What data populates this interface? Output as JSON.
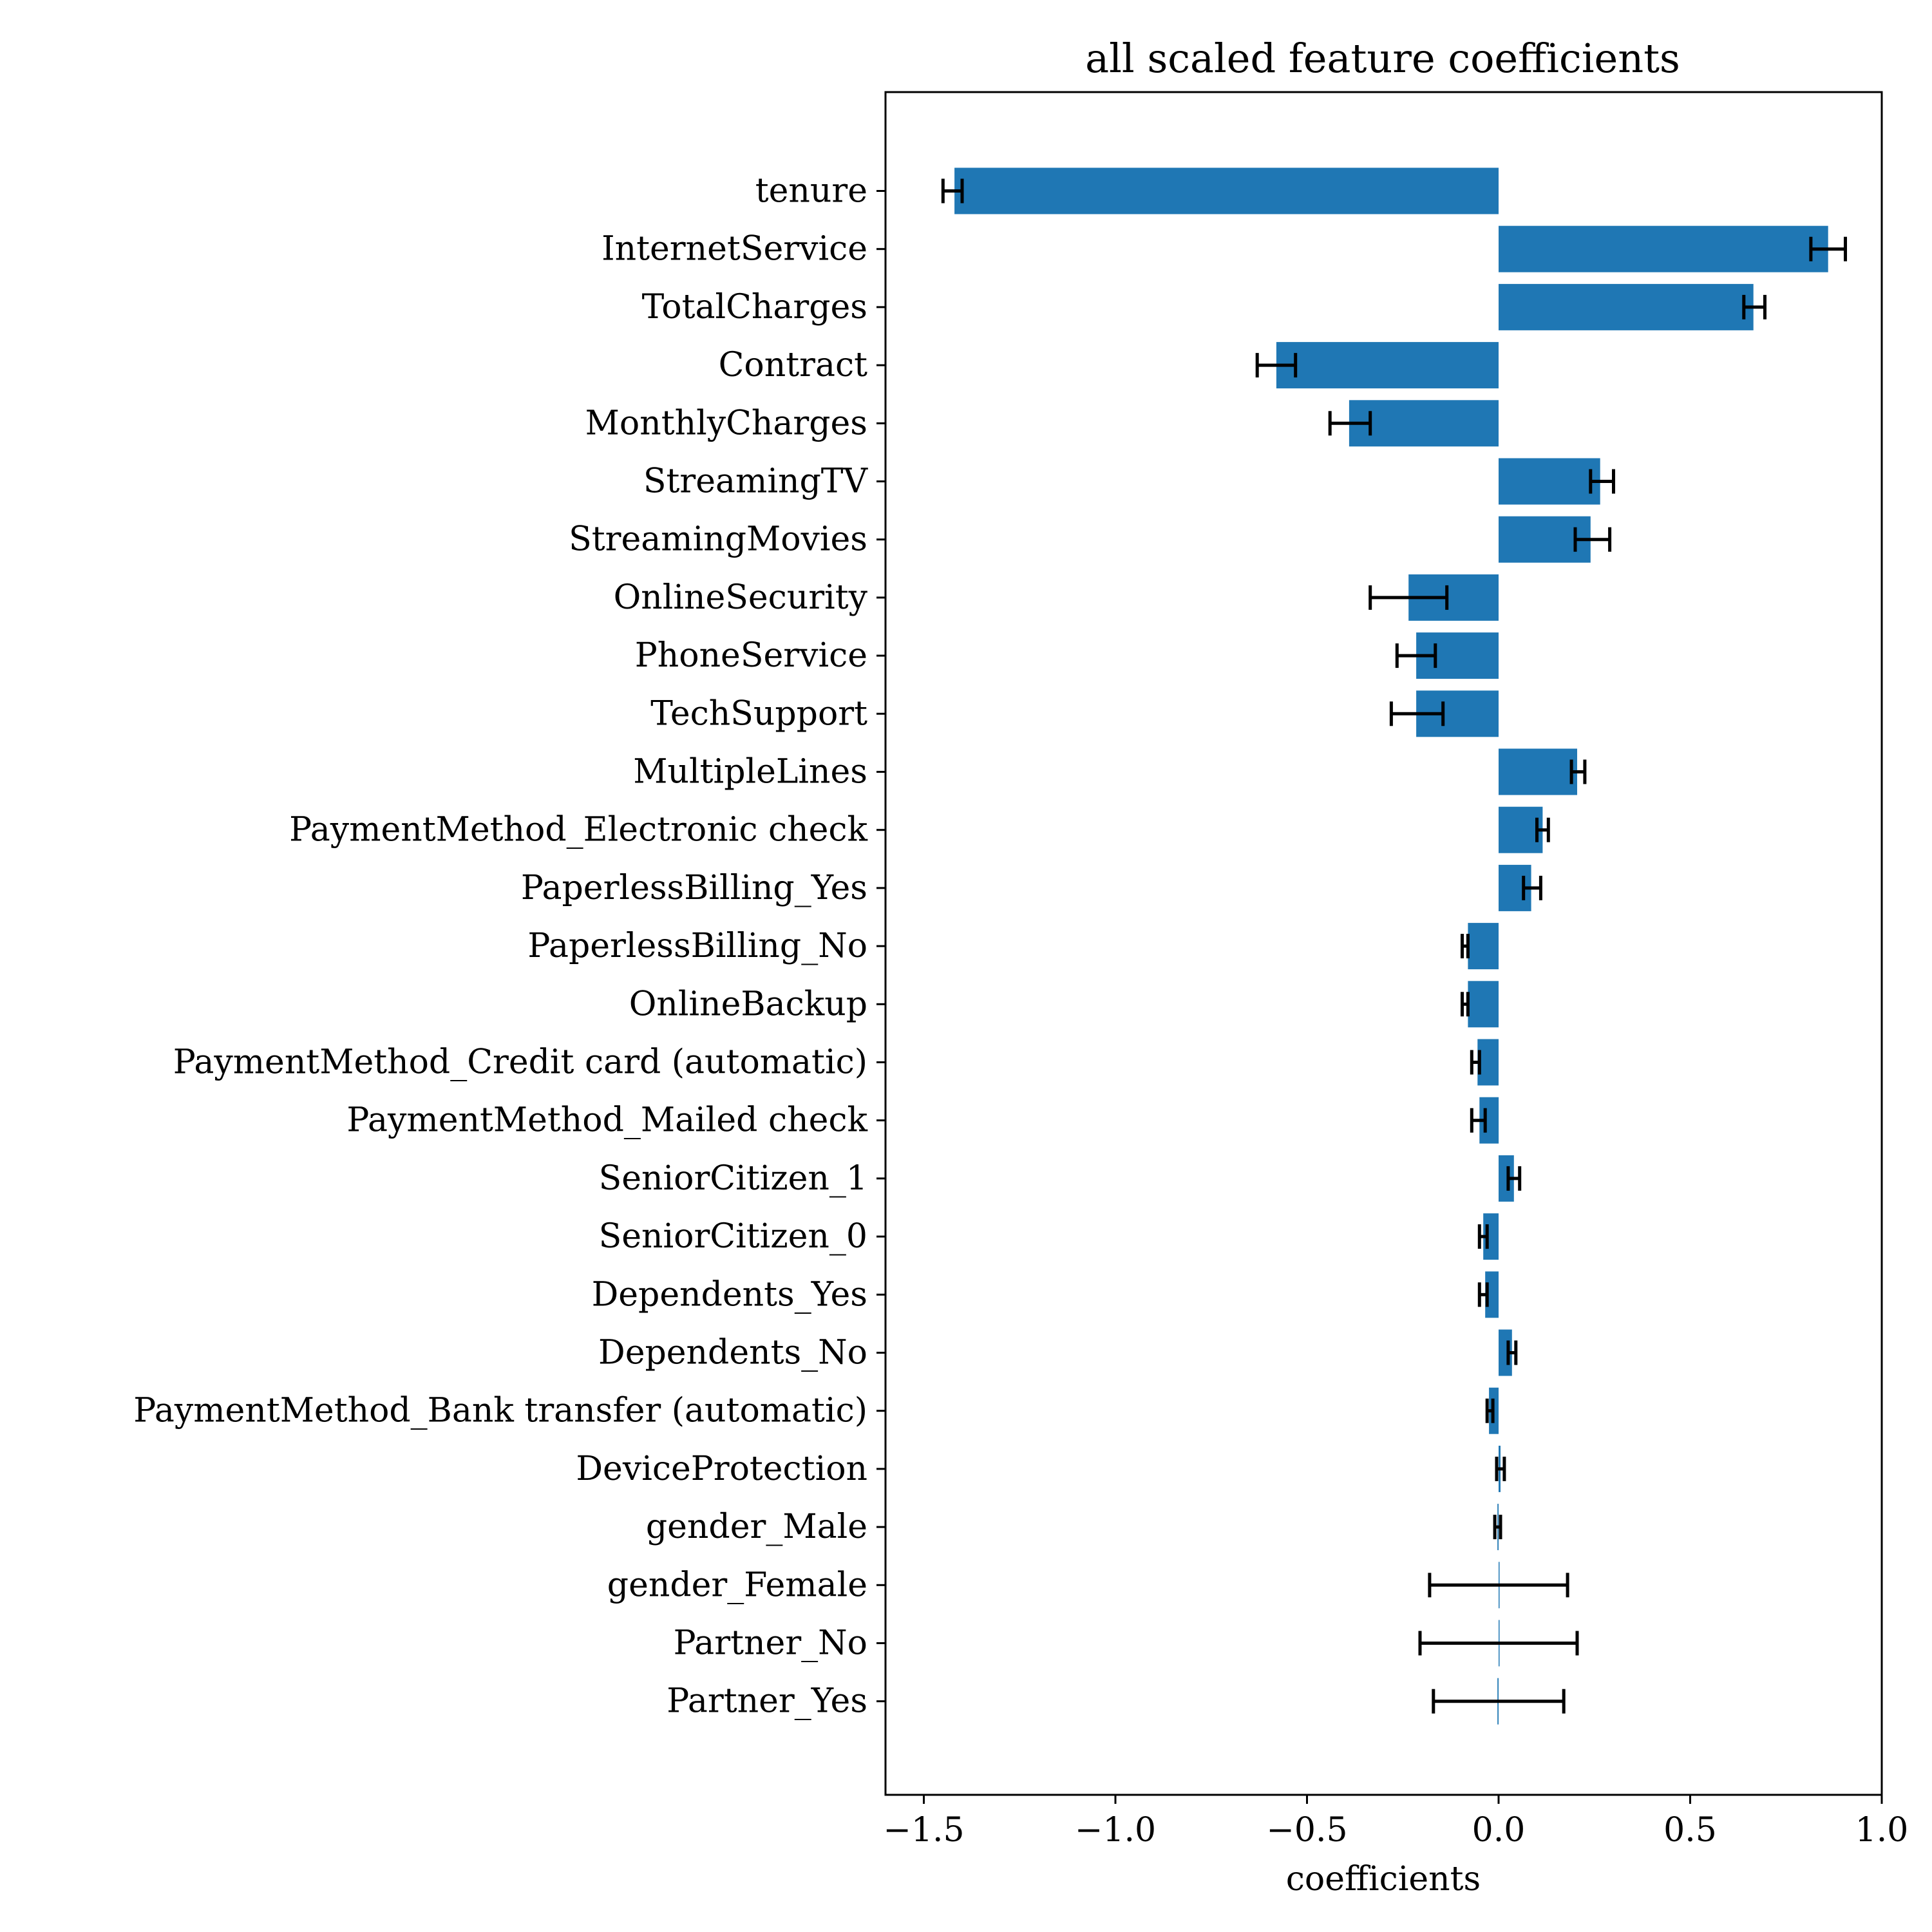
{
  "chart_data": {
    "type": "bar",
    "orientation": "horizontal",
    "title": "all scaled feature coefficients",
    "xlabel": "coefficients",
    "ylabel": "",
    "xlim": [
      -1.6,
      1.0
    ],
    "xticks": [
      -1.5,
      -1.0,
      -0.5,
      0.0,
      0.5,
      1.0
    ],
    "xtick_labels": [
      "−1.5",
      "−1.0",
      "−0.5",
      "0.0",
      "0.5",
      "1.0"
    ],
    "grid": false,
    "legend": "none",
    "bar_color": "#1f77b4",
    "errorbar_color": "#000000",
    "categories": [
      "tenure",
      "InternetService",
      "TotalCharges",
      "Contract",
      "MonthlyCharges",
      "StreamingTV",
      "StreamingMovies",
      "OnlineSecurity",
      "PhoneService",
      "TechSupport",
      "MultipleLines",
      "PaymentMethod_Electronic check",
      "PaperlessBilling_Yes",
      "PaperlessBilling_No",
      "OnlineBackup",
      "PaymentMethod_Credit card (automatic)",
      "PaymentMethod_Mailed check",
      "SeniorCitizen_1",
      "SeniorCitizen_0",
      "Dependents_Yes",
      "Dependents_No",
      "PaymentMethod_Bank transfer (automatic)",
      "DeviceProtection",
      "gender_Male",
      "gender_Female",
      "Partner_No",
      "Partner_Yes"
    ],
    "values": [
      -1.42,
      0.86,
      0.665,
      -0.58,
      -0.39,
      0.265,
      0.24,
      -0.235,
      -0.215,
      -0.215,
      0.205,
      0.115,
      0.085,
      -0.08,
      -0.08,
      -0.055,
      -0.05,
      0.04,
      -0.04,
      -0.035,
      0.035,
      -0.025,
      0.005,
      -0.003,
      0.0,
      0.0,
      -0.003
    ],
    "error_low": [
      -1.45,
      0.815,
      0.64,
      -0.63,
      -0.44,
      0.24,
      0.2,
      -0.335,
      -0.265,
      -0.28,
      0.19,
      0.1,
      0.065,
      -0.095,
      -0.095,
      -0.07,
      -0.07,
      0.025,
      -0.05,
      -0.05,
      0.025,
      -0.03,
      -0.005,
      -0.01,
      -0.18,
      -0.205,
      -0.17
    ],
    "error_high": [
      -1.4,
      0.905,
      0.695,
      -0.53,
      -0.335,
      0.3,
      0.29,
      -0.135,
      -0.165,
      -0.145,
      0.225,
      0.13,
      0.11,
      -0.08,
      -0.08,
      -0.05,
      -0.035,
      0.055,
      -0.03,
      -0.03,
      0.045,
      -0.015,
      0.015,
      0.005,
      0.18,
      0.205,
      0.17
    ]
  }
}
